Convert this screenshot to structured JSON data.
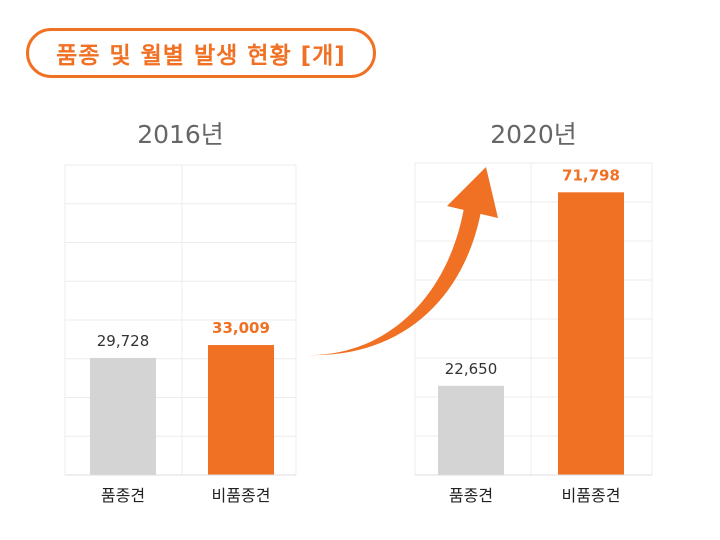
{
  "title": "품종 및 월별 발생 현황 [개]",
  "colors": {
    "accent": "#f07124",
    "neutral": "#d4d4d4",
    "grid": "#ececec"
  },
  "chart_data": [
    {
      "type": "bar",
      "title": "2016년",
      "categories": [
        "품종견",
        "비품종견"
      ],
      "values": [
        29728,
        33009
      ],
      "value_labels": [
        "29,728",
        "33,009"
      ],
      "highlight_index": 1,
      "ylim": [
        0,
        80000
      ],
      "grid": true
    },
    {
      "type": "bar",
      "title": "2020년",
      "categories": [
        "품종견",
        "비품종견"
      ],
      "values": [
        22650,
        71798
      ],
      "value_labels": [
        "22,650",
        "71,798"
      ],
      "highlight_index": 1,
      "ylim": [
        0,
        80000
      ],
      "grid": true
    }
  ],
  "arrow": {
    "icon": "upward-curved-arrow-icon",
    "color": "#f07124"
  }
}
